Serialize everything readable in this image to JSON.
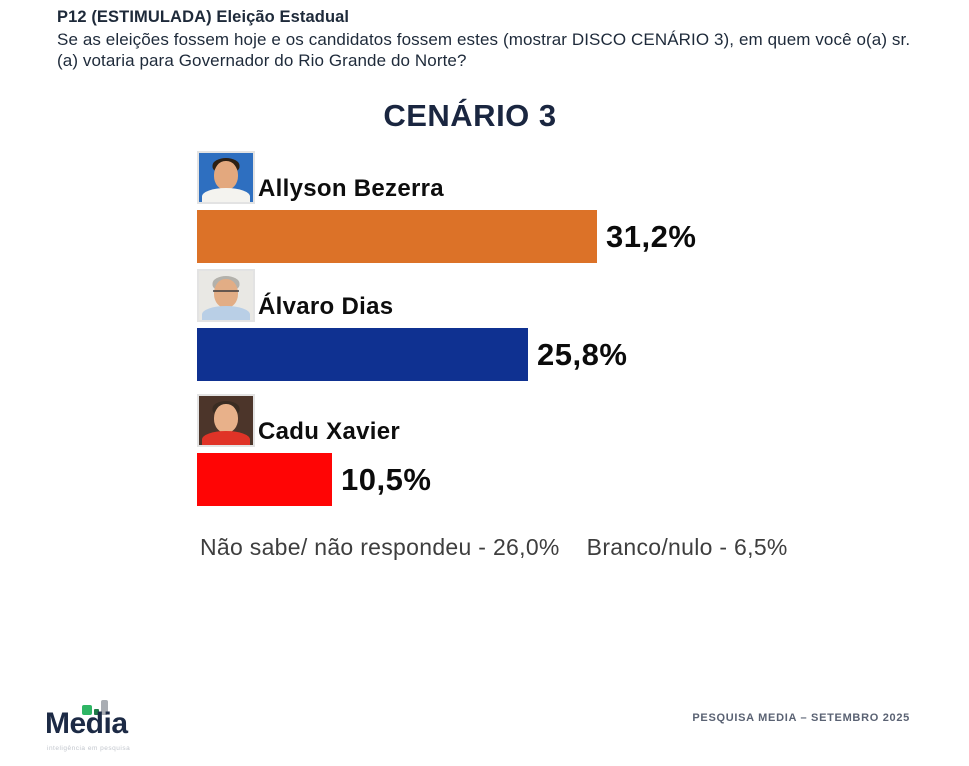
{
  "header": {
    "question_code": "P12 (ESTIMULADA) Eleição Estadual",
    "question_text": "Se as eleições fossem hoje e os candidatos fossem estes (mostrar DISCO CENÁRIO 3), em quem você o(a) sr.(a) votaria para Governador do Rio Grande do Norte?"
  },
  "chart_data": {
    "type": "bar",
    "orientation": "horizontal",
    "title": "CENÁRIO 3",
    "categories": [
      "Allyson Bezerra",
      "Álvaro Dias",
      "Cadu Xavier"
    ],
    "values": [
      31.2,
      25.8,
      10.5
    ],
    "value_labels": [
      "31,2%",
      "25,8%",
      "10,5%"
    ],
    "bar_colors": [
      "#DC7228",
      "#0F3191",
      "#FF0505"
    ],
    "xlim": [
      0,
      33
    ],
    "grid": false,
    "legend": "none",
    "annotations": [
      "Não sabe/ não respondeu - 26,0%",
      "Branco/nulo - 6,5%"
    ]
  },
  "candidate_photos": [
    {
      "description": "allyson-bezerra-portrait",
      "background": "#2e6fc0",
      "shirt": "#f4f3ef",
      "hair": "#2d2014",
      "skin": "#e3a87e",
      "glasses": false
    },
    {
      "description": "alvaro-dias-portrait",
      "background": "#e9e8e4",
      "shirt": "#b9cfe6",
      "hair": "#b3b1ab",
      "skin": "#e2ad85",
      "glasses": true
    },
    {
      "description": "cadu-xavier-portrait",
      "background": "#4c352a",
      "shirt": "#e03327",
      "hair": "#3a2c22",
      "skin": "#e8b18a",
      "glasses": false
    }
  ],
  "notes": {
    "no_answer": "Não sabe/ não respondeu - 26,0%",
    "blank_null": "Branco/nulo - 6,5%"
  },
  "footer": {
    "logo_text": "Media",
    "logo_tagline": "inteligência em pesquisa",
    "source_label": "PESQUISA MEDIA – SETEMBRO 2025"
  }
}
